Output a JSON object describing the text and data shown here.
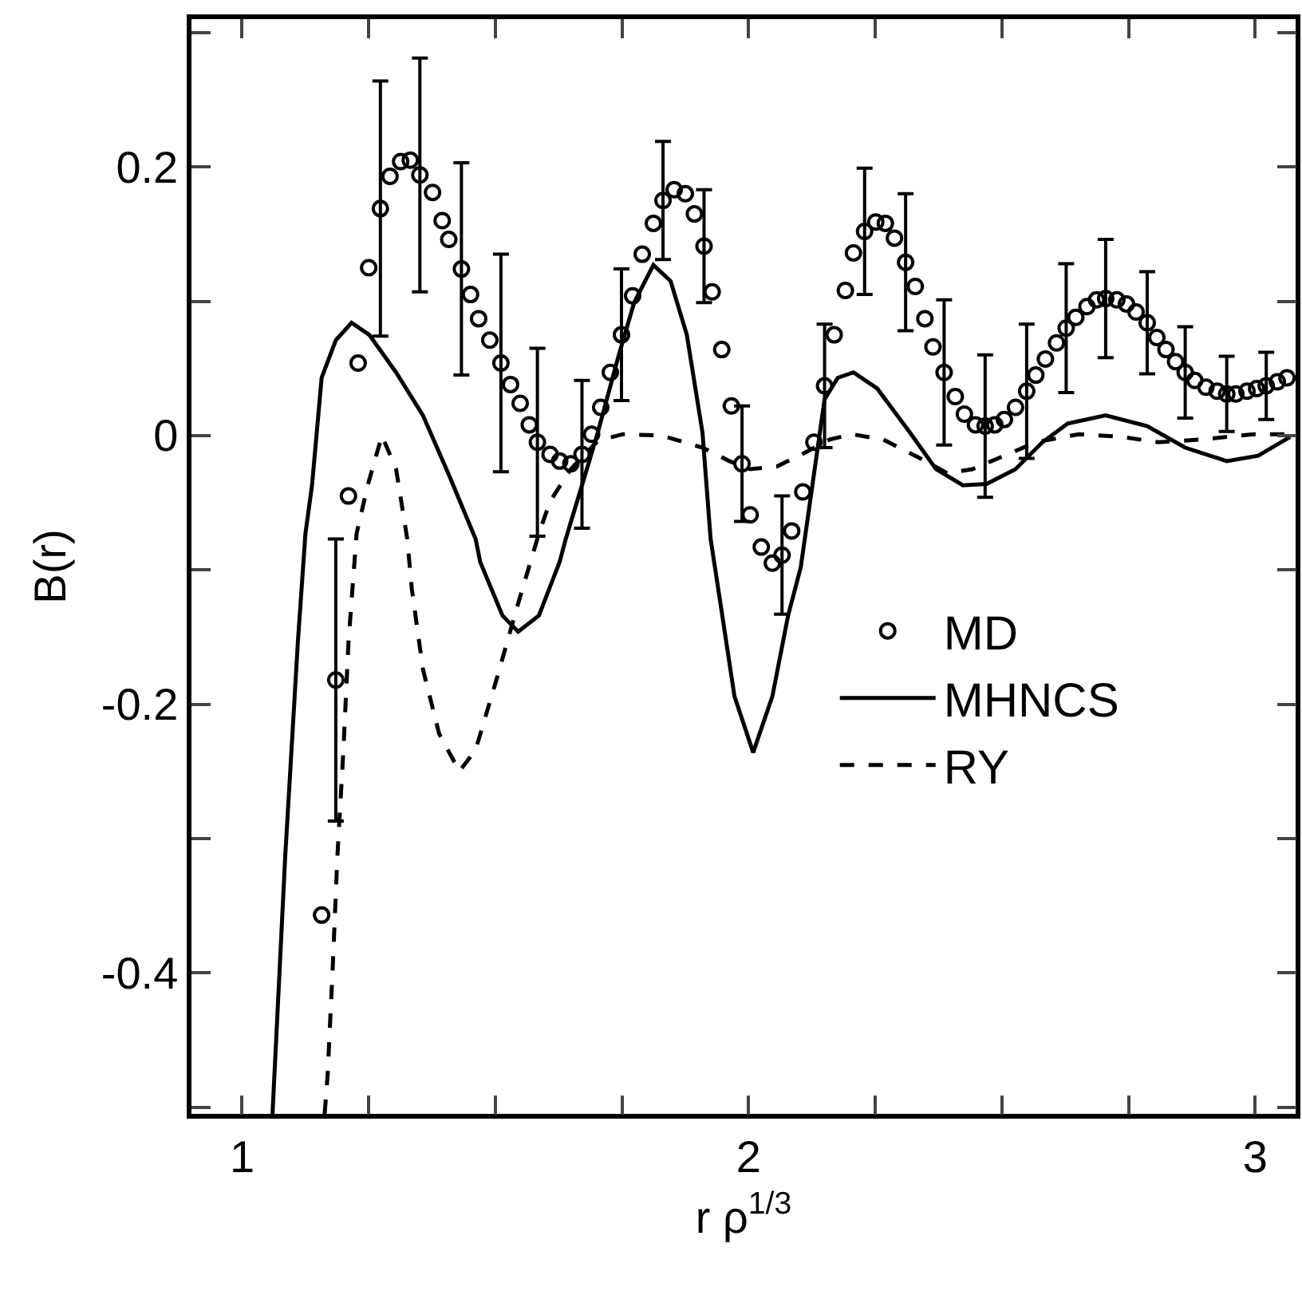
{
  "chart_data": {
    "type": "line",
    "xlabel": "r ρ$^{1/3}$",
    "ylabel": "B(r)",
    "xlim": [
      0.9,
      3.08
    ],
    "ylim": [
      -0.505,
      0.31
    ],
    "xticks": [
      {
        "value": 1,
        "label": "1"
      },
      {
        "value": 1.25,
        "label": null
      },
      {
        "value": 1.5,
        "label": null
      },
      {
        "value": 1.75,
        "label": null
      },
      {
        "value": 2,
        "label": "2"
      },
      {
        "value": 2.25,
        "label": null
      },
      {
        "value": 2.5,
        "label": null
      },
      {
        "value": 2.75,
        "label": null
      },
      {
        "value": 3,
        "label": "3"
      }
    ],
    "yticks": [
      {
        "value": -0.5,
        "label": null
      },
      -0.4,
      {
        "value": -0.3,
        "label": null
      },
      -0.2,
      {
        "value": -0.1,
        "label": null
      },
      0,
      {
        "value": 0.1,
        "label": null
      },
      0.2,
      {
        "value": 0.3,
        "label": null
      }
    ],
    "grid": false,
    "legend": "right",
    "series": [
      {
        "name": "MD",
        "type": "scatter",
        "marker": "circle",
        "color": "#000000",
        "x": [
          1.157,
          1.185,
          1.21,
          1.229,
          1.25,
          1.273,
          1.292,
          1.313,
          1.332,
          1.351,
          1.376,
          1.395,
          1.408,
          1.433,
          1.451,
          1.467,
          1.489,
          1.511,
          1.53,
          1.549,
          1.567,
          1.583,
          1.608,
          1.627,
          1.649,
          1.671,
          1.69,
          1.708,
          1.727,
          1.749,
          1.771,
          1.79,
          1.812,
          1.831,
          1.853,
          1.875,
          1.893,
          1.912,
          1.928,
          1.947,
          1.966,
          1.987,
          2.003,
          2.025,
          2.047,
          2.066,
          2.085,
          2.107,
          2.129,
          2.15,
          2.169,
          2.191,
          2.207,
          2.229,
          2.251,
          2.27,
          2.288,
          2.31,
          2.329,
          2.348,
          2.364,
          2.386,
          2.408,
          2.426,
          2.448,
          2.467,
          2.486,
          2.505,
          2.527,
          2.549,
          2.567,
          2.586,
          2.608,
          2.627,
          2.646,
          2.668,
          2.687,
          2.705,
          2.727,
          2.746,
          2.765,
          2.787,
          2.806,
          2.824,
          2.843,
          2.862,
          2.881,
          2.903,
          2.925,
          2.944,
          2.962,
          2.984,
          3.003,
          3.022,
          3.044,
          3.063
        ],
        "values": [
          -0.357,
          -0.182,
          -0.045,
          0.054,
          0.125,
          0.169,
          0.193,
          0.204,
          0.205,
          0.194,
          0.181,
          0.16,
          0.146,
          0.124,
          0.105,
          0.087,
          0.071,
          0.054,
          0.038,
          0.024,
          0.008,
          -0.005,
          -0.014,
          -0.019,
          -0.021,
          -0.014,
          0.001,
          0.021,
          0.047,
          0.075,
          0.104,
          0.135,
          0.158,
          0.175,
          0.183,
          0.18,
          0.165,
          0.141,
          0.107,
          0.064,
          0.022,
          -0.021,
          -0.059,
          -0.083,
          -0.095,
          -0.089,
          -0.071,
          -0.042,
          -0.005,
          0.037,
          0.075,
          0.108,
          0.136,
          0.152,
          0.159,
          0.158,
          0.147,
          0.129,
          0.111,
          0.087,
          0.066,
          0.047,
          0.029,
          0.016,
          0.008,
          0.007,
          0.008,
          0.012,
          0.021,
          0.033,
          0.045,
          0.057,
          0.069,
          0.08,
          0.088,
          0.096,
          0.101,
          0.102,
          0.101,
          0.098,
          0.092,
          0.084,
          0.073,
          0.064,
          0.055,
          0.047,
          0.041,
          0.036,
          0.033,
          0.031,
          0.031,
          0.033,
          0.035,
          0.037,
          0.04,
          0.043
        ],
        "errors": [
          null,
          0.105,
          null,
          null,
          null,
          0.095,
          null,
          null,
          null,
          0.087,
          null,
          null,
          null,
          0.079,
          null,
          null,
          null,
          0.081,
          null,
          null,
          null,
          0.07,
          null,
          null,
          null,
          0.055,
          null,
          null,
          null,
          0.049,
          null,
          null,
          null,
          0.044,
          null,
          null,
          null,
          0.042,
          null,
          null,
          null,
          0.043,
          null,
          null,
          null,
          0.044,
          null,
          null,
          null,
          0.046,
          null,
          null,
          null,
          0.047,
          null,
          null,
          null,
          0.051,
          null,
          null,
          null,
          0.054,
          null,
          null,
          null,
          0.053,
          null,
          null,
          null,
          0.05,
          null,
          null,
          null,
          0.048,
          null,
          null,
          null,
          0.044,
          null,
          null,
          null,
          0.038,
          null,
          null,
          null,
          0.034,
          null,
          null,
          null,
          0.028,
          null,
          null,
          null,
          0.025,
          null,
          null
        ]
      },
      {
        "name": "MHNCS",
        "type": "line",
        "line_style": "solid",
        "color": "#000000",
        "x": [
          1.06,
          1.085,
          1.11,
          1.125,
          1.138,
          1.157,
          1.185,
          1.216,
          1.251,
          1.304,
          1.357,
          1.408,
          1.461,
          1.47,
          1.514,
          1.545,
          1.586,
          1.627,
          1.639,
          1.671,
          1.702,
          1.743,
          1.774,
          1.812,
          1.846,
          1.878,
          1.909,
          1.925,
          1.94,
          1.972,
          2.009,
          2.047,
          2.078,
          2.103,
          2.15,
          2.176,
          2.207,
          2.254,
          2.317,
          2.37,
          2.423,
          2.47,
          2.527,
          2.58,
          2.63,
          2.705,
          2.787,
          2.862,
          2.944,
          3.006,
          3.069
        ],
        "values": [
          -0.505,
          -0.314,
          -0.154,
          -0.073,
          -0.037,
          0.043,
          0.071,
          0.084,
          0.075,
          0.047,
          0.015,
          -0.029,
          -0.077,
          -0.094,
          -0.134,
          -0.146,
          -0.134,
          -0.094,
          -0.077,
          -0.037,
          0.002,
          0.059,
          0.099,
          0.127,
          0.115,
          0.075,
          0.002,
          -0.077,
          -0.114,
          -0.194,
          -0.236,
          -0.194,
          -0.134,
          -0.098,
          0.027,
          0.043,
          0.047,
          0.035,
          0.003,
          -0.025,
          -0.037,
          -0.036,
          -0.025,
          -0.005,
          0.009,
          0.015,
          0.007,
          -0.009,
          -0.019,
          -0.015,
          -0.001
        ]
      },
      {
        "name": "RY",
        "type": "line",
        "line_style": "dashed",
        "color": "#000000",
        "x": [
          1.163,
          1.169,
          1.179,
          1.188,
          1.2,
          1.21,
          1.226,
          1.248,
          1.276,
          1.304,
          1.326,
          1.335,
          1.357,
          1.389,
          1.429,
          1.461,
          1.502,
          1.545,
          1.586,
          1.608,
          1.649,
          1.702,
          1.752,
          1.828,
          1.909,
          1.962,
          2.003,
          2.056,
          2.11,
          2.16,
          2.204,
          2.266,
          2.339,
          2.392,
          2.442,
          2.505,
          2.567,
          2.652,
          2.737,
          2.809,
          2.893,
          2.997,
          3.069
        ],
        "values": [
          -0.505,
          -0.475,
          -0.395,
          -0.314,
          -0.234,
          -0.154,
          -0.073,
          -0.037,
          0.0,
          -0.025,
          -0.077,
          -0.114,
          -0.174,
          -0.222,
          -0.25,
          -0.234,
          -0.182,
          -0.125,
          -0.073,
          -0.049,
          -0.025,
          -0.004,
          0.001,
          0.0,
          -0.009,
          -0.019,
          -0.025,
          -0.023,
          -0.013,
          -0.003,
          0.001,
          -0.003,
          -0.017,
          -0.028,
          -0.025,
          -0.015,
          -0.005,
          0.001,
          -0.001,
          -0.005,
          -0.003,
          0.001,
          0.001
        ]
      }
    ]
  }
}
